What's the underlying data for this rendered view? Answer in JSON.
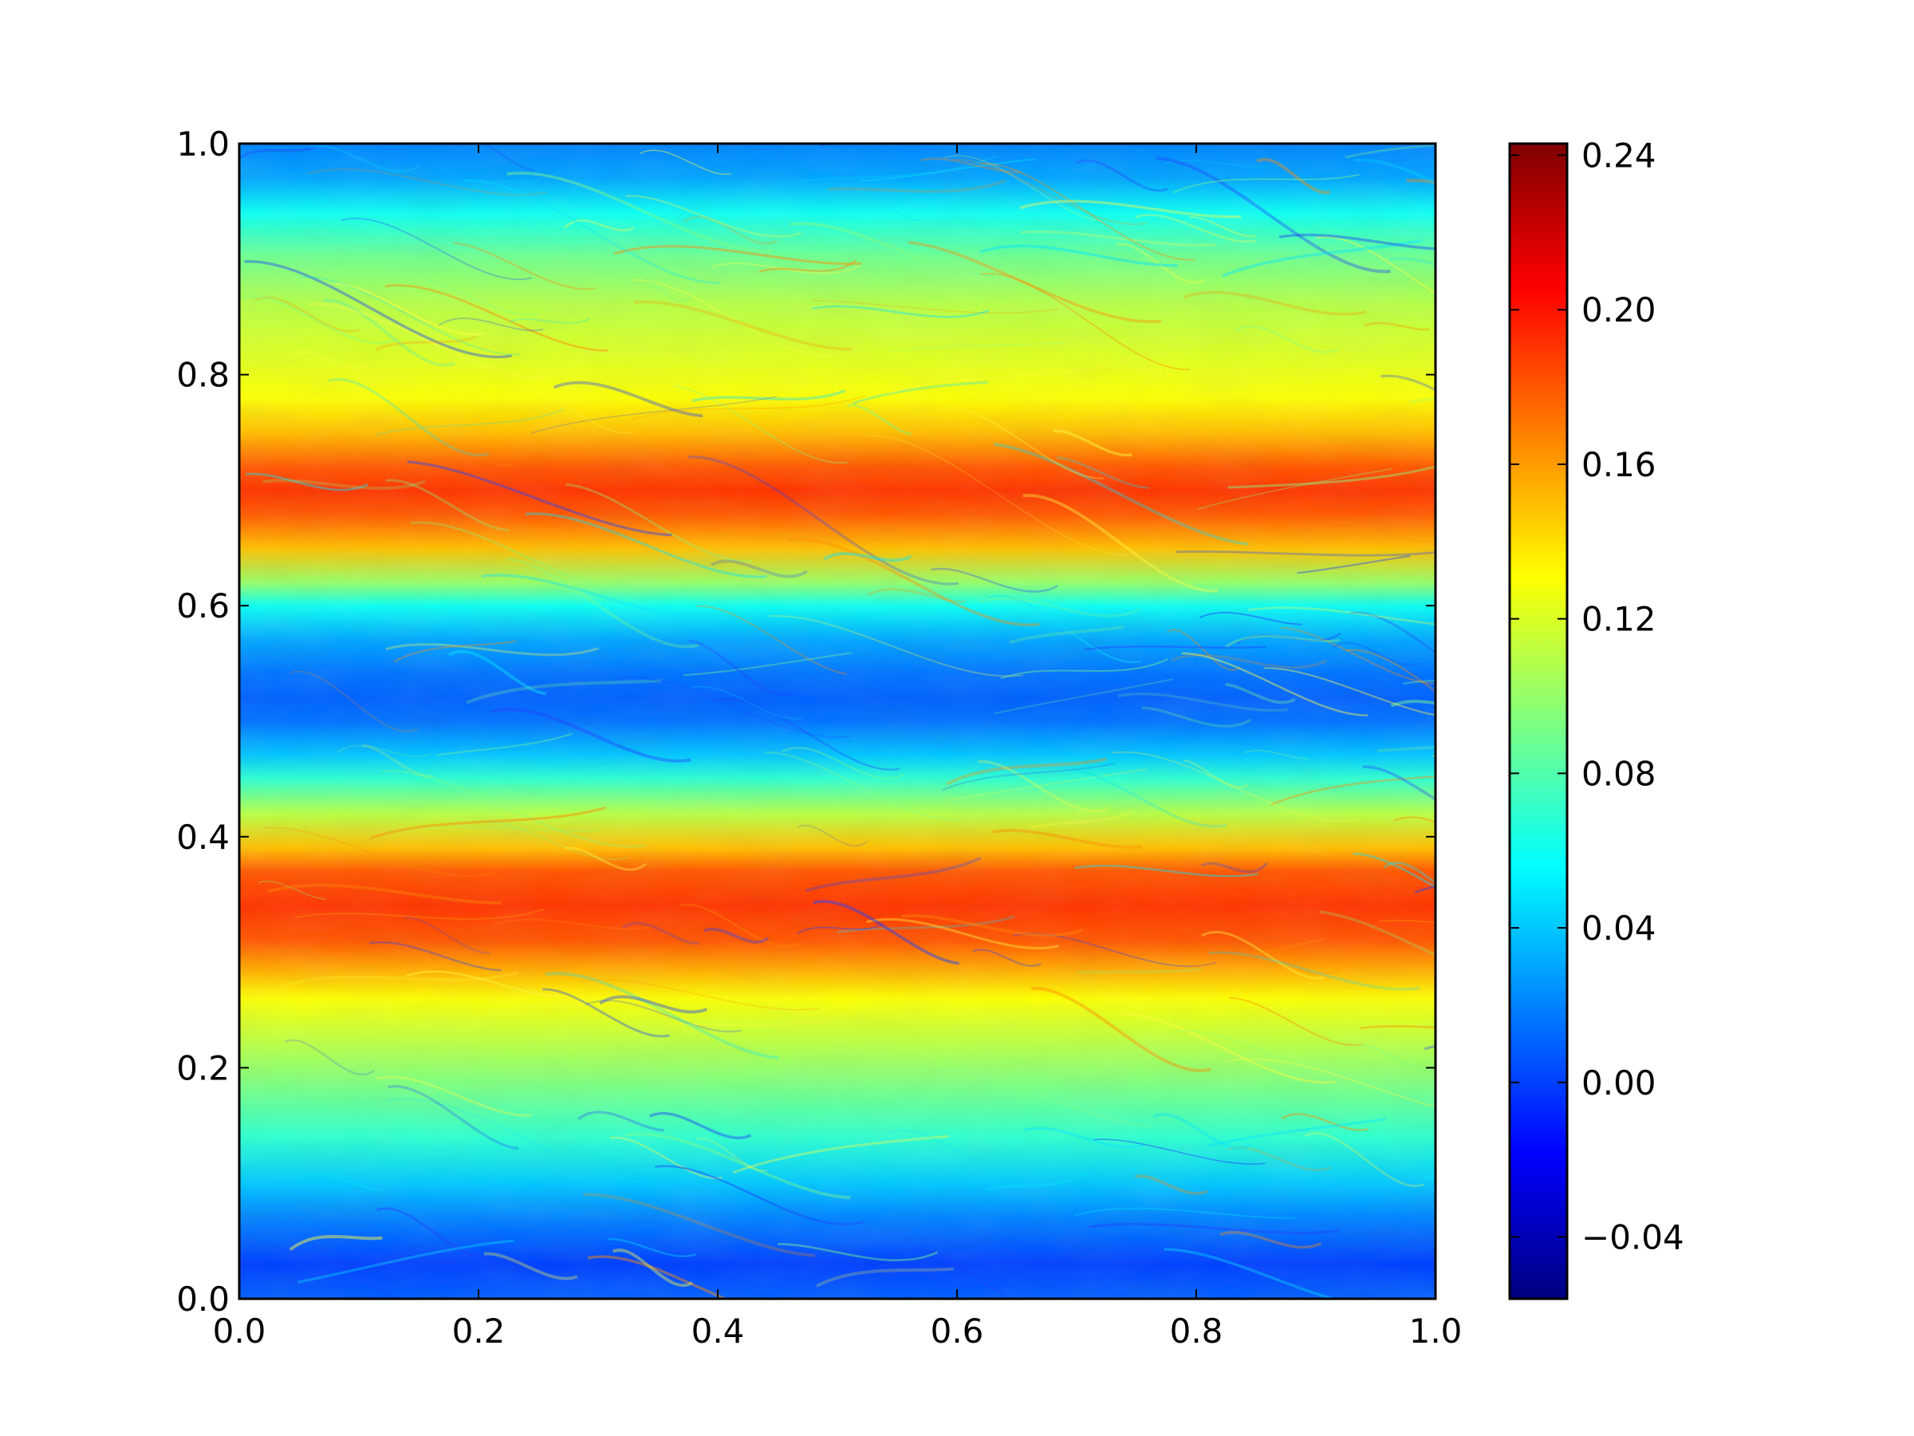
{
  "chart_data": {
    "type": "heatmap",
    "title": "",
    "xlabel": "",
    "ylabel": "",
    "xlim": [
      0.0,
      1.0
    ],
    "ylim": [
      0.0,
      1.0
    ],
    "x_ticks": [
      "0.0",
      "0.2",
      "0.4",
      "0.6",
      "0.8",
      "1.0"
    ],
    "y_ticks": [
      "0.0",
      "0.2",
      "0.4",
      "0.6",
      "0.8",
      "1.0"
    ],
    "grid": false,
    "colormap": "jet",
    "colorbar": {
      "range": [
        -0.056,
        0.243
      ],
      "ticks": [
        {
          "value": -0.04,
          "label": "−0.04"
        },
        {
          "value": 0.0,
          "label": "0.00"
        },
        {
          "value": 0.04,
          "label": "0.04"
        },
        {
          "value": 0.08,
          "label": "0.08"
        },
        {
          "value": 0.12,
          "label": "0.12"
        },
        {
          "value": 0.16,
          "label": "0.16"
        },
        {
          "value": 0.2,
          "label": "0.20"
        },
        {
          "value": 0.24,
          "label": "0.24"
        }
      ]
    },
    "row_profile": {
      "y": [
        0.0,
        0.03,
        0.07,
        0.1,
        0.14,
        0.18,
        0.22,
        0.26,
        0.29,
        0.31,
        0.34,
        0.37,
        0.39,
        0.42,
        0.45,
        0.47,
        0.5,
        0.52,
        0.54,
        0.57,
        0.6,
        0.62,
        0.65,
        0.68,
        0.7,
        0.72,
        0.75,
        0.78,
        0.82,
        0.86,
        0.9,
        0.94,
        0.97,
        1.0
      ],
      "value": [
        0.01,
        0.0,
        0.02,
        0.04,
        0.07,
        0.09,
        0.11,
        0.13,
        0.16,
        0.18,
        0.19,
        0.18,
        0.15,
        0.11,
        0.07,
        0.04,
        0.015,
        0.01,
        0.015,
        0.03,
        0.06,
        0.1,
        0.15,
        0.18,
        0.19,
        0.18,
        0.15,
        0.13,
        0.12,
        0.11,
        0.09,
        0.06,
        0.03,
        0.02
      ]
    }
  },
  "colors": {
    "colormap_stops": [
      "#00007f",
      "#0000ff",
      "#007fff",
      "#00ffff",
      "#7fff7f",
      "#ffff00",
      "#ff7f00",
      "#ff0000",
      "#7f0000"
    ]
  }
}
